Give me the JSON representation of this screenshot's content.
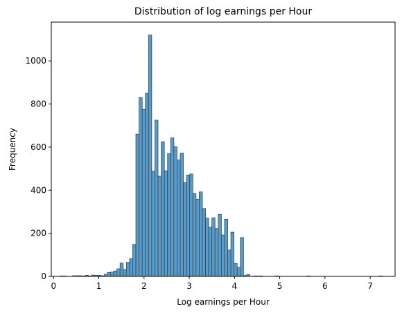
{
  "chart_data": {
    "type": "bar",
    "title": "Distribution of log earnings per Hour",
    "xlabel": "Log earnings per Hour",
    "ylabel": "Frequency",
    "xlim": [
      -0.05,
      7.55
    ],
    "ylim": [
      0,
      1180
    ],
    "x_ticks": [
      0,
      1,
      2,
      3,
      4,
      5,
      6,
      7
    ],
    "y_ticks": [
      0,
      200,
      400,
      600,
      800,
      1000
    ],
    "bar_color": "#5b9bc8",
    "edge_color": "#2b4a5e",
    "bin_width": 0.0699,
    "bins_left": [
      0.14,
      0.21,
      0.28,
      0.35,
      0.42,
      0.49,
      0.56,
      0.63,
      0.7,
      0.77,
      0.84,
      0.91,
      0.98,
      1.05,
      1.12,
      1.19,
      1.26,
      1.33,
      1.4,
      1.47,
      1.54,
      1.61,
      1.68,
      1.75,
      1.82,
      1.89,
      1.96,
      2.03,
      2.1,
      2.17,
      2.24,
      2.31,
      2.38,
      2.45,
      2.52,
      2.59,
      2.66,
      2.73,
      2.8,
      2.87,
      2.94,
      3.01,
      3.08,
      3.15,
      3.22,
      3.29,
      3.36,
      3.43,
      3.5,
      3.57,
      3.64,
      3.71,
      3.78,
      3.85,
      3.92,
      3.99,
      4.06,
      4.13,
      4.2,
      4.27,
      4.34,
      4.41,
      4.48,
      4.55,
      4.62,
      4.69,
      4.76,
      4.83,
      4.9,
      5.6,
      7.2
    ],
    "frequencies": [
      2,
      2,
      0,
      0,
      3,
      3,
      3,
      2,
      5,
      2,
      6,
      5,
      5,
      3,
      10,
      18,
      20,
      25,
      35,
      62,
      32,
      65,
      82,
      148,
      660,
      830,
      775,
      850,
      1120,
      488,
      725,
      465,
      625,
      490,
      570,
      643,
      602,
      540,
      572,
      435,
      470,
      475,
      385,
      358,
      392,
      315,
      270,
      228,
      272,
      222,
      288,
      192,
      265,
      122,
      205,
      60,
      42,
      180,
      4,
      8,
      0,
      2,
      2,
      2,
      0,
      0,
      0,
      0,
      2,
      2,
      2
    ]
  }
}
